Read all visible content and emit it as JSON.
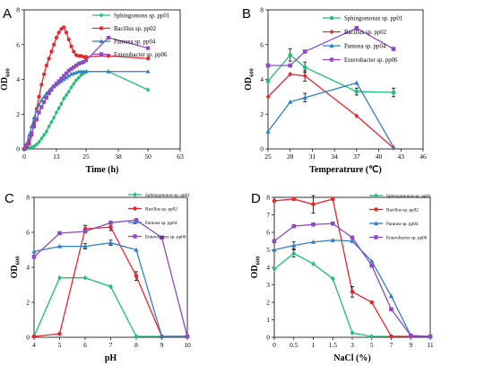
{
  "colors": {
    "Sphingomons sp. pp01": "#1fbf77",
    "Sphingomonas sp. pp01": "#1fbf77",
    "Bacillus sp. pp02": "#e8262e",
    "Pantoea sp. pp04": "#2f7fc6",
    "Enterobacter sp. pp06": "#8d4bbf"
  },
  "chart_data": [
    {
      "panel": "A",
      "type": "line",
      "xlabel": "Time (h)",
      "ylabel": "OD600",
      "xlim": [
        0,
        63
      ],
      "ylim": [
        0,
        8
      ],
      "xticks": [
        0,
        13,
        25,
        38,
        50,
        63
      ],
      "yticks": [
        0,
        2,
        4,
        6,
        8
      ],
      "legend": "top-right",
      "series": [
        {
          "name": "Sphingomons sp. pp01",
          "marker": "diamond",
          "x": [
            0,
            1,
            2,
            3,
            4,
            5,
            6,
            7,
            8,
            9,
            10,
            11,
            12,
            13,
            14,
            15,
            16,
            17,
            18,
            19,
            20,
            21,
            22,
            23,
            24,
            25,
            34,
            50
          ],
          "y": [
            0,
            0.02,
            0.05,
            0.1,
            0.15,
            0.25,
            0.4,
            0.6,
            0.8,
            1.0,
            1.3,
            1.55,
            1.8,
            2.1,
            2.35,
            2.6,
            2.9,
            3.1,
            3.3,
            3.55,
            3.75,
            3.95,
            4.1,
            4.25,
            4.35,
            4.45,
            4.45,
            3.4
          ]
        },
        {
          "name": "Bacillus sp. pp02",
          "marker": "circle",
          "x": [
            0,
            1,
            2,
            3,
            4,
            5,
            6,
            7,
            8,
            9,
            10,
            11,
            12,
            13,
            14,
            15,
            16,
            17,
            18,
            19,
            20,
            21,
            22,
            23,
            24,
            25,
            34,
            50
          ],
          "y": [
            0,
            0.1,
            0.3,
            0.8,
            1.5,
            2.3,
            3.0,
            3.7,
            4.3,
            4.8,
            5.2,
            5.6,
            6.0,
            6.4,
            6.7,
            6.9,
            7.0,
            6.7,
            6.3,
            5.9,
            5.6,
            5.4,
            5.35,
            5.35,
            5.3,
            5.3,
            5.35,
            5.2
          ]
        },
        {
          "name": "Pantoea sp. pp04",
          "marker": "triangle",
          "x": [
            0,
            1,
            2,
            3,
            4,
            5,
            6,
            7,
            8,
            9,
            10,
            11,
            12,
            13,
            14,
            15,
            16,
            17,
            18,
            19,
            20,
            21,
            22,
            23,
            24,
            25,
            34,
            50
          ],
          "y": [
            0,
            0.3,
            0.8,
            1.3,
            1.8,
            2.2,
            2.55,
            2.8,
            3.0,
            3.2,
            3.35,
            3.5,
            3.6,
            3.7,
            3.8,
            3.9,
            4.0,
            4.1,
            4.2,
            4.3,
            4.35,
            4.4,
            4.45,
            4.45,
            4.45,
            4.45,
            4.45,
            4.45
          ]
        },
        {
          "name": "Enterobacter sp. pp06",
          "marker": "square",
          "x": [
            0,
            1,
            2,
            3,
            4,
            5,
            6,
            7,
            8,
            9,
            10,
            11,
            12,
            13,
            14,
            15,
            16,
            17,
            18,
            19,
            20,
            21,
            22,
            23,
            24,
            25,
            34,
            50
          ],
          "y": [
            0,
            0.2,
            0.5,
            0.9,
            1.3,
            1.7,
            2.1,
            2.4,
            2.7,
            2.95,
            3.2,
            3.4,
            3.6,
            3.75,
            3.9,
            4.05,
            4.2,
            4.35,
            4.5,
            4.6,
            4.7,
            4.8,
            4.9,
            4.95,
            5.0,
            5.1,
            6.4,
            5.8
          ]
        }
      ]
    },
    {
      "panel": "B",
      "type": "line",
      "xlabel": "Temperatrure (℃)",
      "ylabel": "OD600",
      "xlim": [
        25,
        46
      ],
      "ylim": [
        0,
        8
      ],
      "xticks": [
        25,
        28,
        31,
        34,
        37,
        40,
        43,
        46
      ],
      "yticks": [
        0,
        2,
        4,
        6,
        8
      ],
      "legend": "top-right",
      "series": [
        {
          "name": "Sphingomonas sp. pp01",
          "marker": "circle",
          "x": [
            25,
            28,
            30,
            37,
            42
          ],
          "y": [
            3.9,
            5.4,
            4.7,
            3.3,
            3.25
          ],
          "err": [
            0,
            0.35,
            0.3,
            0.2,
            0.25
          ]
        },
        {
          "name": "Bacillus sp. pp02",
          "marker": "diamond",
          "x": [
            25,
            28,
            30,
            37,
            42
          ],
          "y": [
            3.0,
            4.3,
            4.2,
            1.9,
            0.05
          ],
          "err": [
            0,
            0,
            0.3,
            0,
            0
          ]
        },
        {
          "name": "Pantoea sp. pp04",
          "marker": "triangle",
          "x": [
            25,
            28,
            30,
            37,
            42
          ],
          "y": [
            1.0,
            2.7,
            2.95,
            3.8,
            0.1
          ],
          "err": [
            0,
            0,
            0.25,
            0,
            0
          ]
        },
        {
          "name": "Enterobacter sp. pp06",
          "marker": "square",
          "x": [
            25,
            28,
            30,
            37,
            42
          ],
          "y": [
            4.8,
            4.8,
            5.6,
            6.95,
            5.75
          ],
          "err": [
            0,
            0,
            0,
            0.1,
            0
          ]
        }
      ]
    },
    {
      "panel": "C",
      "type": "line",
      "xlabel": "pH",
      "ylabel": "OD600",
      "xlim": [
        4,
        10
      ],
      "ylim": [
        0,
        8
      ],
      "xticks": [
        4,
        5,
        6,
        7,
        8,
        9,
        10
      ],
      "yticks": [
        0,
        2,
        4,
        6,
        8
      ],
      "legend": "top-right",
      "series": [
        {
          "name": "Sphingomonas sp. pp01",
          "marker": "diamond",
          "x": [
            4,
            5,
            6,
            7,
            8,
            9,
            10
          ],
          "y": [
            0.05,
            3.4,
            3.4,
            2.9,
            0.05,
            0.05,
            0.05
          ]
        },
        {
          "name": "Bacillus sp. pp02",
          "marker": "circle",
          "x": [
            4,
            5,
            6,
            7,
            8,
            9,
            10
          ],
          "y": [
            0.05,
            0.2,
            6.2,
            6.3,
            3.5,
            0.05,
            0.05
          ],
          "err": [
            0,
            0,
            0.2,
            0.2,
            0.25,
            0,
            0
          ]
        },
        {
          "name": "Pantoea sp. pp04",
          "marker": "triangle",
          "x": [
            4,
            5,
            6,
            7,
            8,
            9,
            10
          ],
          "y": [
            4.9,
            5.2,
            5.2,
            5.4,
            5.0,
            0.05,
            0.05
          ],
          "err": [
            0,
            0,
            0.15,
            0.15,
            0,
            0,
            0
          ]
        },
        {
          "name": "Enterobacter sp. pp06",
          "marker": "square",
          "x": [
            4,
            5,
            6,
            7,
            8,
            9,
            10
          ],
          "y": [
            4.6,
            5.95,
            6.05,
            6.55,
            6.7,
            5.7,
            0.05
          ]
        }
      ]
    },
    {
      "panel": "D",
      "type": "line",
      "xlabel": "NaCl (%)",
      "ylabel": "OD600",
      "xticks": [
        "0",
        "0.5",
        "1",
        "1.5",
        "3",
        "5",
        "7",
        "9",
        "11"
      ],
      "ylim": [
        0,
        8
      ],
      "yticks": [
        0,
        1,
        2,
        3,
        4,
        5,
        6,
        7,
        8
      ],
      "legend": "top-right",
      "series": [
        {
          "name": "Sphingomonas sp. pp01",
          "marker": "diamond",
          "values": [
            3.9,
            4.8,
            4.2,
            3.35,
            0.25,
            0.05,
            0.05,
            0.05,
            0.05
          ],
          "err": [
            0,
            0.2,
            0,
            0,
            0,
            0,
            0,
            0,
            0
          ]
        },
        {
          "name": "Bacillus sp. pp02",
          "marker": "circle",
          "values": [
            7.8,
            7.9,
            7.6,
            7.9,
            2.6,
            2.0,
            0.05,
            0.05,
            0.05
          ],
          "err": [
            0,
            0,
            0.5,
            0,
            0.3,
            0,
            0,
            0,
            0
          ]
        },
        {
          "name": "Pantoea sp. pp04",
          "marker": "triangle",
          "values": [
            5.0,
            5.25,
            5.45,
            5.55,
            5.5,
            4.35,
            2.35,
            0.1,
            0.05
          ],
          "err": [
            0,
            0.2,
            0,
            0,
            0,
            0,
            0,
            0,
            0
          ]
        },
        {
          "name": "Enterobacter sp. pp06",
          "marker": "square",
          "values": [
            5.5,
            6.35,
            6.45,
            6.5,
            5.7,
            4.1,
            1.6,
            0.1,
            0.05
          ]
        }
      ]
    }
  ]
}
